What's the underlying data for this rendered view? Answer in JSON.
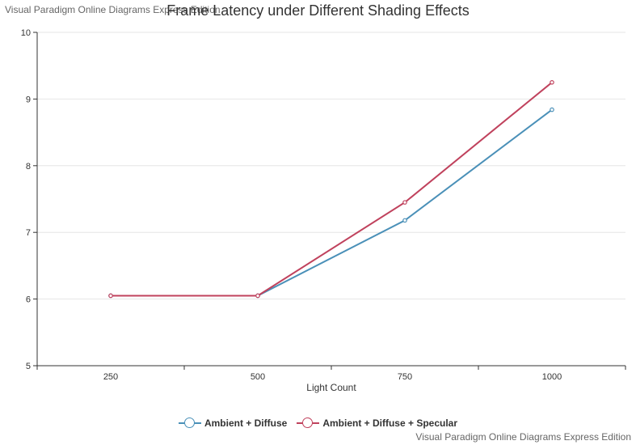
{
  "watermark_top": "Visual Paradigm Online Diagrams Express Edition",
  "watermark_bottom": "Visual Paradigm Online Diagrams Express Edition",
  "chart_data": {
    "type": "line",
    "title": "Frame Latency under Different Shading Effects",
    "xlabel": "Light Count",
    "ylabel": "",
    "categories": [
      "250",
      "500",
      "750",
      "1000"
    ],
    "ylim": [
      5,
      10
    ],
    "yticks": [
      "5",
      "6",
      "7",
      "8",
      "9",
      "10"
    ],
    "grid": true,
    "legend_position": "bottom",
    "series": [
      {
        "name": "Ambient + Diffuse",
        "color": "#4a90b8",
        "values": [
          6.05,
          6.05,
          7.18,
          8.84
        ]
      },
      {
        "name": "Ambient + Diffuse + Specular",
        "color": "#c0425d",
        "values": [
          6.05,
          6.05,
          7.45,
          9.25
        ]
      }
    ]
  }
}
